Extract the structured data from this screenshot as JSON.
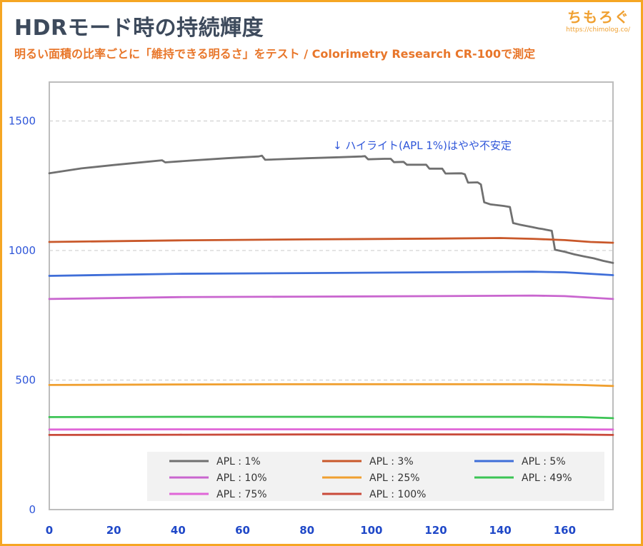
{
  "header": {
    "title": "HDRモード時の持続輝度",
    "subtitle": "明るい面積の比率ごとに「維持できる明るさ」をテスト / Colorimetry Research CR-100で測定"
  },
  "brand": {
    "name": "ちもろぐ",
    "url": "https://chimolog.co/"
  },
  "chart_data": {
    "type": "line",
    "title": "HDRモード時の持続輝度",
    "xlabel": "",
    "ylabel": "",
    "xlim": [
      0,
      175
    ],
    "ylim": [
      0,
      1650
    ],
    "x_ticks": [
      0,
      20,
      40,
      60,
      80,
      100,
      120,
      140,
      160
    ],
    "y_ticks": [
      0,
      500,
      1000,
      1500
    ],
    "grid": "horizontal dashed at 500, 1000, 1500",
    "legend_position": "bottom inside",
    "annotation": "↓ ハイライト(APL 1%)はやや不安定",
    "series": [
      {
        "name": "APL : 1%",
        "color": "#707070",
        "points": [
          [
            0,
            1298
          ],
          [
            10,
            1317
          ],
          [
            20,
            1330
          ],
          [
            30,
            1342
          ],
          [
            35,
            1348
          ],
          [
            36,
            1340
          ],
          [
            45,
            1348
          ],
          [
            55,
            1356
          ],
          [
            65,
            1363
          ],
          [
            66,
            1366
          ],
          [
            67,
            1350
          ],
          [
            80,
            1356
          ],
          [
            90,
            1360
          ],
          [
            97,
            1363
          ],
          [
            98,
            1364
          ],
          [
            99,
            1352
          ],
          [
            104,
            1354
          ],
          [
            106,
            1354
          ],
          [
            107,
            1341
          ],
          [
            110,
            1342
          ],
          [
            111,
            1331
          ],
          [
            117,
            1331
          ],
          [
            118,
            1316
          ],
          [
            122,
            1316
          ],
          [
            123,
            1297
          ],
          [
            128,
            1298
          ],
          [
            129,
            1294
          ],
          [
            130,
            1262
          ],
          [
            133,
            1263
          ],
          [
            134,
            1255
          ],
          [
            135,
            1186
          ],
          [
            137,
            1178
          ],
          [
            141,
            1172
          ],
          [
            143,
            1168
          ],
          [
            144,
            1106
          ],
          [
            146,
            1100
          ],
          [
            150,
            1090
          ],
          [
            152,
            1085
          ],
          [
            153,
            1083
          ],
          [
            156,
            1076
          ],
          [
            157,
            1003
          ],
          [
            160,
            995
          ],
          [
            163,
            985
          ],
          [
            166,
            977
          ],
          [
            169,
            970
          ],
          [
            172,
            960
          ],
          [
            175,
            952
          ]
        ]
      },
      {
        "name": "APL : 3%",
        "color": "#c9582a",
        "points": [
          [
            0,
            1033
          ],
          [
            40,
            1039
          ],
          [
            80,
            1043
          ],
          [
            120,
            1046
          ],
          [
            140,
            1048
          ],
          [
            150,
            1045
          ],
          [
            160,
            1040
          ],
          [
            168,
            1033
          ],
          [
            175,
            1030
          ]
        ]
      },
      {
        "name": "APL : 5%",
        "color": "#3f6ed8",
        "points": [
          [
            0,
            902
          ],
          [
            40,
            910
          ],
          [
            80,
            913
          ],
          [
            120,
            916
          ],
          [
            150,
            918
          ],
          [
            160,
            916
          ],
          [
            168,
            910
          ],
          [
            175,
            905
          ]
        ]
      },
      {
        "name": "APL : 10%",
        "color": "#c966cf",
        "points": [
          [
            0,
            813
          ],
          [
            40,
            820
          ],
          [
            80,
            822
          ],
          [
            120,
            824
          ],
          [
            150,
            826
          ],
          [
            160,
            824
          ],
          [
            168,
            818
          ],
          [
            175,
            813
          ]
        ]
      },
      {
        "name": "APL : 25%",
        "color": "#f0a030",
        "points": [
          [
            0,
            481
          ],
          [
            40,
            483
          ],
          [
            80,
            484
          ],
          [
            120,
            484
          ],
          [
            150,
            484
          ],
          [
            165,
            481
          ],
          [
            175,
            477
          ]
        ]
      },
      {
        "name": "APL : 49%",
        "color": "#3cc455",
        "points": [
          [
            0,
            357
          ],
          [
            40,
            358
          ],
          [
            80,
            358
          ],
          [
            120,
            358
          ],
          [
            150,
            358
          ],
          [
            165,
            357
          ],
          [
            175,
            353
          ]
        ]
      },
      {
        "name": "APL : 75%",
        "color": "#e066d8",
        "points": [
          [
            0,
            309
          ],
          [
            40,
            310
          ],
          [
            80,
            310
          ],
          [
            120,
            310
          ],
          [
            160,
            310
          ],
          [
            175,
            309
          ]
        ]
      },
      {
        "name": "APL : 100%",
        "color": "#c94a3a",
        "points": [
          [
            0,
            288
          ],
          [
            40,
            289
          ],
          [
            80,
            290
          ],
          [
            120,
            290
          ],
          [
            160,
            290
          ],
          [
            175,
            288
          ]
        ]
      }
    ]
  }
}
